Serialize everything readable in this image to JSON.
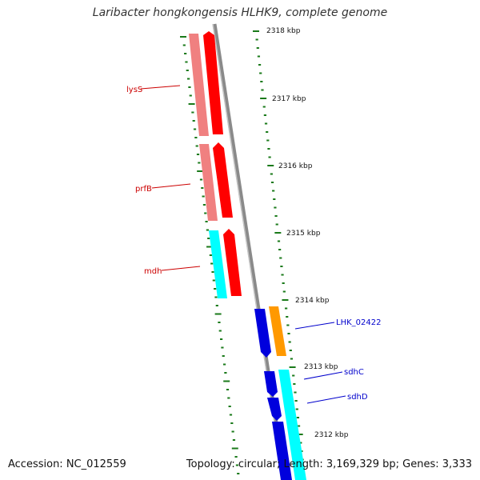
{
  "title": "Laribacter hongkongensis HLHK9, complete genome",
  "footer": {
    "accession": "Accession: NC_012559",
    "summary": "Topology: circular; Length: 3,169,329 bp; Genes: 3,333"
  },
  "colors": {
    "backbone": "#8a8a8a",
    "tick": "#1a7a1a",
    "forward_cds": "#ff0000",
    "forward_cds_light": "#f08080",
    "reverse_cds": "#0000dd",
    "reverse_cds_light": "#00ffff",
    "orange_cds": "#ff9900",
    "label_forward": "#cc0000",
    "label_reverse": "#0000cc"
  },
  "scale": {
    "unit": "kbp",
    "labels": [
      "2318 kbp",
      "2317 kbp",
      "2316 kbp",
      "2315 kbp",
      "2314 kbp",
      "2313 kbp",
      "2312 kbp"
    ]
  },
  "genes": [
    {
      "name": "lysS",
      "strand": "forward"
    },
    {
      "name": "prfB",
      "strand": "forward"
    },
    {
      "name": "mdh",
      "strand": "forward"
    },
    {
      "name": "LHK_02422",
      "strand": "reverse"
    },
    {
      "name": "sdhC",
      "strand": "reverse"
    },
    {
      "name": "sdhD",
      "strand": "reverse"
    }
  ]
}
